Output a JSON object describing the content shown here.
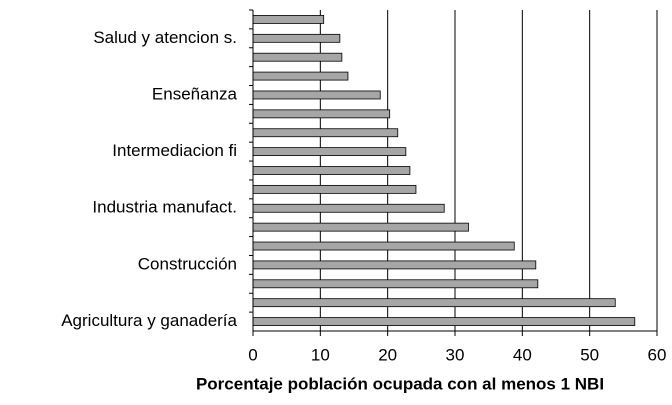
{
  "chart_data": {
    "type": "barh",
    "x_label": "Porcentaje población ocupada con al menos 1 NBI",
    "categories": [
      null,
      "Salud y atencion s.",
      null,
      null,
      "Enseñanza",
      null,
      null,
      "Intermediacion fi",
      null,
      null,
      "Industria manufact.",
      null,
      null,
      "Construcción",
      null,
      null,
      "Agricultura y ganadería"
    ],
    "values": [
      10.5,
      12.9,
      13.2,
      14.1,
      18.9,
      20.3,
      21.5,
      22.7,
      23.3,
      24.2,
      28.4,
      32.0,
      38.8,
      42.0,
      42.3,
      53.8,
      56.7
    ],
    "color": "#a6a6a6",
    "xlim": [
      0,
      60
    ],
    "xticks": [
      0,
      10,
      20,
      30,
      40,
      50,
      60
    ],
    "grid": true
  }
}
